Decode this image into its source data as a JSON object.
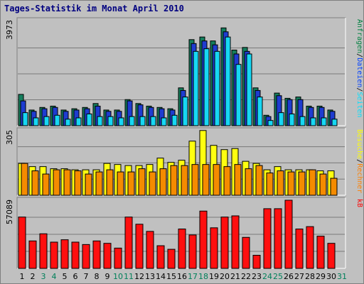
{
  "title": "Tages-Statistik im Monat April 2010",
  "chart_data": [
    {
      "type": "bar",
      "panel": "top",
      "y_label": "3973",
      "ylim": [
        0,
        3973
      ],
      "legend": [
        {
          "text": "Anfragen",
          "color": "#008040"
        },
        {
          "text": "Dateien",
          "color": "#0040ff"
        },
        {
          "text": "Seiten",
          "color": "#00e0ff"
        }
      ],
      "series": [
        {
          "name": "Anfragen",
          "color": "#157e5d",
          "values": [
            1200,
            600,
            700,
            750,
            600,
            650,
            700,
            850,
            600,
            600,
            1000,
            850,
            750,
            700,
            650,
            1450,
            3300,
            3400,
            3250,
            3750,
            2900,
            3000,
            1450,
            400,
            1250,
            1050,
            1100,
            750,
            750,
            600
          ]
        },
        {
          "name": "Dateien",
          "color": "#1e3cd0",
          "values": [
            950,
            550,
            650,
            700,
            550,
            600,
            650,
            750,
            550,
            550,
            950,
            800,
            700,
            650,
            600,
            1350,
            3150,
            3250,
            3100,
            3600,
            2750,
            2850,
            1350,
            350,
            1150,
            1000,
            1000,
            700,
            700,
            550
          ]
        },
        {
          "name": "Seiten",
          "color": "#17d7f3",
          "values": [
            500,
            300,
            350,
            400,
            250,
            300,
            450,
            350,
            350,
            300,
            350,
            350,
            350,
            300,
            400,
            1100,
            2850,
            2950,
            2850,
            3400,
            2350,
            2750,
            1100,
            200,
            500,
            450,
            350,
            300,
            300,
            250
          ]
        }
      ]
    },
    {
      "type": "bar",
      "panel": "middle",
      "y_label": "305",
      "ylim": [
        0,
        305
      ],
      "legend": [
        {
          "text": "Besuche",
          "color": "#ffff00"
        },
        {
          "text": "Rechner",
          "color": "#ff8000"
        }
      ],
      "series": [
        {
          "name": "Besuche",
          "color": "#ffff10",
          "values": [
            150,
            135,
            135,
            125,
            125,
            120,
            120,
            120,
            150,
            145,
            140,
            140,
            145,
            175,
            155,
            165,
            255,
            305,
            235,
            215,
            220,
            160,
            150,
            120,
            135,
            120,
            120,
            120,
            115,
            115
          ]
        },
        {
          "name": "Rechner",
          "color": "#f58b00",
          "values": [
            150,
            115,
            100,
            120,
            120,
            115,
            100,
            110,
            120,
            110,
            110,
            125,
            110,
            125,
            140,
            140,
            145,
            145,
            145,
            135,
            145,
            125,
            140,
            105,
            115,
            110,
            110,
            120,
            100,
            80
          ]
        }
      ]
    },
    {
      "type": "bar",
      "panel": "bottom",
      "y_label": "57089",
      "ylim": [
        0,
        57089
      ],
      "legend": [
        {
          "text": "kB",
          "color": "#ff0000"
        }
      ],
      "series": [
        {
          "name": "kB",
          "color": "#ff0f0f",
          "values": [
            43000,
            23000,
            29000,
            22000,
            24000,
            22000,
            20000,
            23000,
            21000,
            17000,
            43000,
            37000,
            31000,
            19000,
            16000,
            33000,
            28000,
            48000,
            34000,
            43000,
            44000,
            26000,
            11000,
            50000,
            50000,
            57089,
            33000,
            35000,
            27000,
            21000
          ]
        }
      ]
    },
    {
      "type": "axis",
      "categories": [
        "1",
        "2",
        "3",
        "4",
        "5",
        "6",
        "7",
        "8",
        "9",
        "10",
        "11",
        "12",
        "13",
        "14",
        "15",
        "16",
        "17",
        "18",
        "19",
        "20",
        "21",
        "22",
        "23",
        "24",
        "25",
        "26",
        "27",
        "28",
        "29",
        "30",
        "31"
      ],
      "weekend_days": [
        "3",
        "4",
        "10",
        "11",
        "17",
        "18",
        "24",
        "25",
        "31"
      ],
      "label_color": "#000000",
      "weekend_color": "#00805a"
    }
  ]
}
